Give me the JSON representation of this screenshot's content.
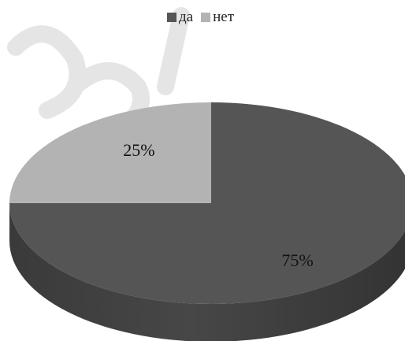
{
  "chart_data": {
    "type": "pie",
    "title": "",
    "categories": [
      "да",
      "нет"
    ],
    "values": [
      75,
      25
    ],
    "data_labels": [
      "75%",
      "25%"
    ],
    "colors": [
      "#555555",
      "#b3b3b3"
    ],
    "legend_position": "top",
    "style": "3d"
  }
}
